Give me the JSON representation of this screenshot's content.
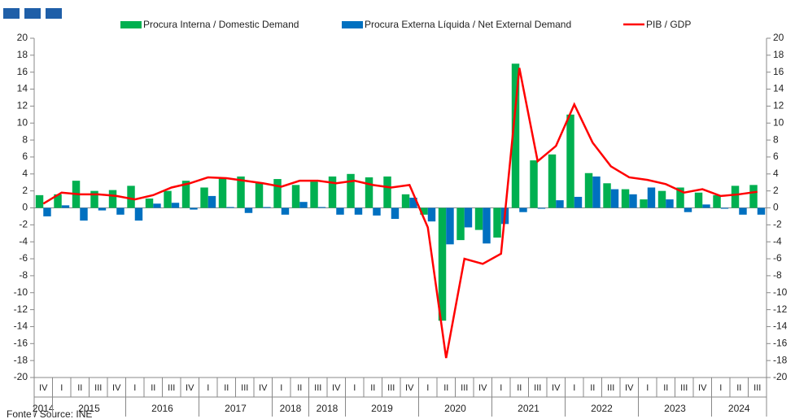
{
  "chart_data": {
    "type": "bar-line",
    "categories": [
      "IV",
      "I",
      "II",
      "III",
      "IV",
      "I",
      "II",
      "III",
      "IV",
      "I",
      "II",
      "III",
      "IV",
      "I",
      "II",
      "III",
      "IV",
      "I",
      "II",
      "III",
      "IV",
      "I",
      "II",
      "III",
      "IV",
      "I",
      "II",
      "III",
      "IV",
      "I",
      "II",
      "III",
      "IV",
      "I",
      "II",
      "III",
      "IV",
      "I",
      "II",
      "III"
    ],
    "years": [
      "2014",
      "2015",
      "2016",
      "2017",
      "2018",
      "2018",
      "2019",
      "2020",
      "2021",
      "2022",
      "2023",
      "2024"
    ],
    "series": [
      {
        "name": "Procura Interna / Domestic Demand",
        "color": "#00b050",
        "kind": "bar",
        "values": [
          1.5,
          1.6,
          3.2,
          2.0,
          2.1,
          2.6,
          1.1,
          2.0,
          3.2,
          2.4,
          3.5,
          3.7,
          3.0,
          3.4,
          2.7,
          3.1,
          3.7,
          4.0,
          3.6,
          3.7,
          1.6,
          -0.8,
          -13.3,
          -3.8,
          -2.6,
          -3.5,
          17.0,
          5.6,
          6.3,
          11.0,
          4.1,
          2.9,
          2.2,
          1.0,
          2.0,
          2.4,
          1.8,
          1.5,
          2.6,
          2.7
        ]
      },
      {
        "name": "Procura Externa Líquida / Net External Demand",
        "color": "#0070c0",
        "kind": "bar",
        "values": [
          -1.0,
          0.3,
          -1.5,
          -0.3,
          -0.8,
          -1.5,
          0.5,
          0.6,
          -0.2,
          1.4,
          0.1,
          -0.6,
          0.1,
          -0.8,
          0.7,
          0.1,
          -0.8,
          -0.8,
          -0.9,
          -1.3,
          1.2,
          -1.6,
          -4.3,
          -2.3,
          -4.2,
          -1.9,
          -0.5,
          -0.1,
          0.9,
          1.3,
          3.7,
          2.2,
          1.6,
          2.4,
          1.0,
          -0.5,
          0.4,
          -0.1,
          -0.8,
          -0.8
        ]
      },
      {
        "name": "PIB / GDP",
        "color": "#ff0000",
        "kind": "line",
        "values": [
          0.5,
          1.8,
          1.6,
          1.6,
          1.4,
          1.0,
          1.5,
          2.4,
          2.9,
          3.6,
          3.5,
          3.2,
          2.9,
          2.5,
          3.2,
          3.2,
          2.9,
          3.2,
          2.7,
          2.4,
          2.7,
          -2.3,
          -17.7,
          -6.0,
          -6.6,
          -5.4,
          16.5,
          5.5,
          7.3,
          12.2,
          7.7,
          4.9,
          3.6,
          3.3,
          2.8,
          1.8,
          2.2,
          1.4,
          1.6,
          1.9
        ]
      }
    ],
    "ylim": [
      -20,
      20
    ],
    "yticks": [
      -20,
      -18,
      -16,
      -14,
      -12,
      -10,
      -8,
      -6,
      -4,
      -2,
      0,
      2,
      4,
      6,
      8,
      10,
      12,
      14,
      16,
      18,
      20
    ],
    "y2lim": [
      -20,
      20
    ],
    "y2ticks": [
      -20,
      -18,
      -16,
      -14,
      -12,
      -10,
      -8,
      -6,
      -4,
      -2,
      0,
      2,
      4,
      6,
      8,
      10,
      12,
      14,
      16,
      18,
      20
    ],
    "source": "Fonte / Source: INE"
  }
}
